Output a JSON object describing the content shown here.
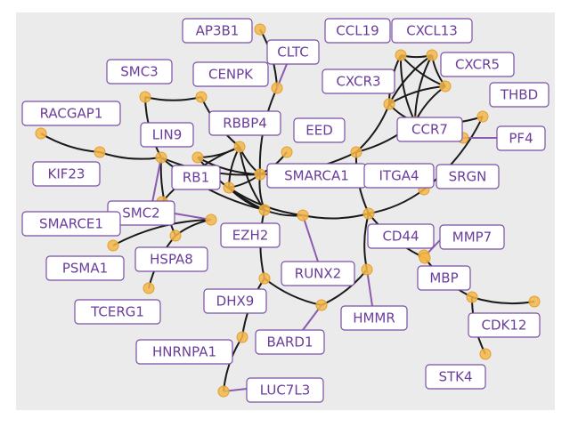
{
  "colors": {
    "panel": "#ebebeb",
    "node": "#f4b74a",
    "edge": "#1a1a1a",
    "label_border": "#7b4fa6",
    "label_text": "#6a3d9a",
    "leader": "#8a5bb0"
  },
  "nodes": [
    {
      "id": "AP3B1",
      "label": "AP3B1"
    },
    {
      "id": "CLTC",
      "label": "CLTC"
    },
    {
      "id": "CCL19",
      "label": "CCL19"
    },
    {
      "id": "CXCL13",
      "label": "CXCL13"
    },
    {
      "id": "CXCR5",
      "label": "CXCR5"
    },
    {
      "id": "CXCR3",
      "label": "CXCR3"
    },
    {
      "id": "THBD",
      "label": "THBD"
    },
    {
      "id": "CCR7",
      "label": "CCR7"
    },
    {
      "id": "PF4",
      "label": "PF4"
    },
    {
      "id": "SMC3",
      "label": "SMC3"
    },
    {
      "id": "CENPK",
      "label": "CENPK"
    },
    {
      "id": "RACGAP1",
      "label": "RACGAP1"
    },
    {
      "id": "LIN9",
      "label": "LIN9"
    },
    {
      "id": "RBBP4",
      "label": "RBBP4"
    },
    {
      "id": "EED",
      "label": "EED"
    },
    {
      "id": "KIF23",
      "label": "KIF23"
    },
    {
      "id": "RB1",
      "label": "RB1"
    },
    {
      "id": "SMARCA1",
      "label": "SMARCA1"
    },
    {
      "id": "ITGA4",
      "label": "ITGA4"
    },
    {
      "id": "SRGN",
      "label": "SRGN"
    },
    {
      "id": "SMC2",
      "label": "SMC2"
    },
    {
      "id": "SMARCE1",
      "label": "SMARCE1"
    },
    {
      "id": "EZH2",
      "label": "EZH2"
    },
    {
      "id": "CD44",
      "label": "CD44"
    },
    {
      "id": "MMP7",
      "label": "MMP7"
    },
    {
      "id": "PSMA1",
      "label": "PSMA1"
    },
    {
      "id": "HSPA8",
      "label": "HSPA8"
    },
    {
      "id": "RUNX2",
      "label": "RUNX2"
    },
    {
      "id": "MBP",
      "label": "MBP"
    },
    {
      "id": "TCERG1",
      "label": "TCERG1"
    },
    {
      "id": "DHX9",
      "label": "DHX9"
    },
    {
      "id": "HMMR",
      "label": "HMMR"
    },
    {
      "id": "CDK12",
      "label": "CDK12"
    },
    {
      "id": "BARD1",
      "label": "BARD1"
    },
    {
      "id": "HNRNPA1",
      "label": "HNRNPA1"
    },
    {
      "id": "STK4",
      "label": "STK4"
    },
    {
      "id": "LUC7L3",
      "label": "LUC7L3"
    }
  ],
  "edges": [
    [
      "RACGAP1",
      "KIF23"
    ],
    [
      "KIF23",
      "LIN9"
    ],
    [
      "SMC3",
      "CENPK"
    ],
    [
      "SMC3",
      "LIN9"
    ],
    [
      "CENPK",
      "RBBP4"
    ],
    [
      "LIN9",
      "SMARCA1"
    ],
    [
      "LIN9",
      "EZH2"
    ],
    [
      "LIN9",
      "HSPA8"
    ],
    [
      "RB1",
      "RBBP4"
    ],
    [
      "RB1",
      "SMARCA1"
    ],
    [
      "RB1",
      "EZH2"
    ],
    [
      "RBBP4",
      "EZH2"
    ],
    [
      "RBBP4",
      "SMARCA1"
    ],
    [
      "RBBP4",
      "SMC2"
    ],
    [
      "RBBP4",
      "RB1_b"
    ],
    [
      "RB1_b",
      "EZH2"
    ],
    [
      "RB1_b",
      "SMARCA1"
    ],
    [
      "RB1_b",
      "RUNX2"
    ],
    [
      "SMARCA1",
      "EED"
    ],
    [
      "SMARCA1",
      "EZH2"
    ],
    [
      "SMARCA1",
      "ITGA4"
    ],
    [
      "CLTC",
      "AP3B1"
    ],
    [
      "CLTC",
      "SMARCA1"
    ],
    [
      "ITGA4",
      "CCR7"
    ],
    [
      "ITGA4",
      "CXCR3"
    ],
    [
      "ITGA4",
      "CD44"
    ],
    [
      "EZH2",
      "RUNX2"
    ],
    [
      "RUNX2",
      "CD44"
    ],
    [
      "CD44",
      "SRGN"
    ],
    [
      "CD44",
      "HMMR"
    ],
    [
      "CD44",
      "MBP"
    ],
    [
      "SRGN",
      "THBD"
    ],
    [
      "CCL19",
      "CXCL13"
    ],
    [
      "CCL19",
      "CXCR5"
    ],
    [
      "CCL19",
      "CXCR3"
    ],
    [
      "CCL19",
      "CCR7"
    ],
    [
      "CXCL13",
      "CXCR5"
    ],
    [
      "CXCL13",
      "CXCR3"
    ],
    [
      "CXCL13",
      "CCR7"
    ],
    [
      "CXCR5",
      "CXCR3"
    ],
    [
      "CXCR5",
      "CCR7"
    ],
    [
      "CXCR3",
      "CCR7"
    ],
    [
      "CCR7",
      "THBD"
    ],
    [
      "SMARCE1",
      "HSPA8"
    ],
    [
      "SMARCE1",
      "PSMA1"
    ],
    [
      "HSPA8",
      "TCERG1"
    ],
    [
      "EZH2",
      "DHX9"
    ],
    [
      "DHX9",
      "BARD1"
    ],
    [
      "DHX9",
      "HNRNPA1"
    ],
    [
      "HNRNPA1",
      "LUC7L3"
    ],
    [
      "BARD1",
      "HMMR"
    ],
    [
      "MBP",
      "CDK12"
    ],
    [
      "CDK12",
      "STK4"
    ],
    [
      "CDK12",
      "CDK12_b"
    ]
  ]
}
